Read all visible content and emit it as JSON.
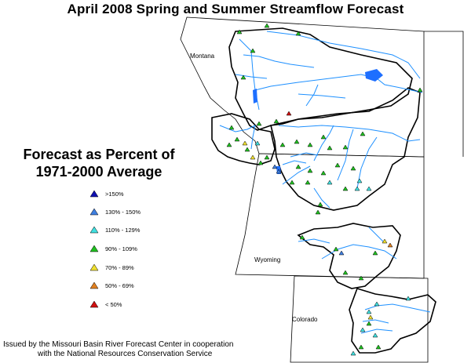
{
  "title": "April 2008 Spring and Summer Streamflow Forecast",
  "legend": {
    "title_line1": "Forecast as Percent of",
    "title_line2": "1971-2000 Average",
    "items": [
      {
        "label": ">150%",
        "color": "#1010b0"
      },
      {
        "label": "130% - 150%",
        "color": "#3f7fe0"
      },
      {
        "label": "110% - 129%",
        "color": "#40e0e0"
      },
      {
        "label": "90% - 109%",
        "color": "#20c020"
      },
      {
        "label": "70% - 89%",
        "color": "#f0e030"
      },
      {
        "label": "50% - 69%",
        "color": "#e08020"
      },
      {
        "label": "< 50%",
        "color": "#d01010"
      }
    ]
  },
  "states": {
    "montana": "Montana",
    "wyoming": "Wyoming",
    "colorado": "Colorado"
  },
  "footer": {
    "line1": "Issued by the Missouri Basin River Forecast Center in cooperation",
    "line2": "with the National Resources Conservation Service"
  }
}
